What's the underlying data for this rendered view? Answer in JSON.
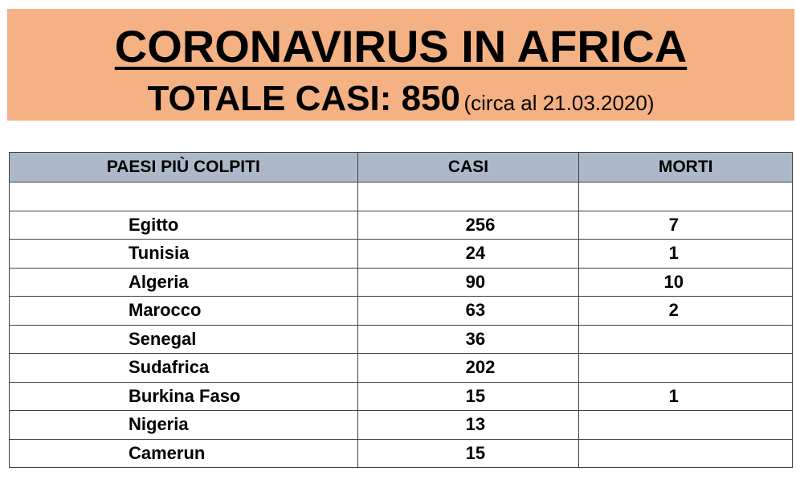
{
  "header": {
    "title": "CORONAVIRUS IN AFRICA",
    "total_label": "TOTALE CASI: 850",
    "date_note": "(circa al 21.03.2020)",
    "background_color": "#f4b183"
  },
  "table": {
    "header_color": "#adb9ca",
    "columns": [
      "PAESI PIÙ COLPITI",
      "CASI",
      "MORTI"
    ],
    "rows": [
      {
        "country": "",
        "cases": "",
        "deaths": ""
      },
      {
        "country": "Egitto",
        "cases": "256",
        "deaths": "7"
      },
      {
        "country": "Tunisia",
        "cases": "24",
        "deaths": "1"
      },
      {
        "country": "Algeria",
        "cases": "90",
        "deaths": "10"
      },
      {
        "country": "Marocco",
        "cases": "63",
        "deaths": "2"
      },
      {
        "country": "Senegal",
        "cases": "36",
        "deaths": ""
      },
      {
        "country": "Sudafrica",
        "cases": "202",
        "deaths": ""
      },
      {
        "country": "Burkina Faso",
        "cases": "15",
        "deaths": "1"
      },
      {
        "country": "Nigeria",
        "cases": "13",
        "deaths": ""
      },
      {
        "country": "Camerun",
        "cases": "15",
        "deaths": ""
      }
    ]
  }
}
